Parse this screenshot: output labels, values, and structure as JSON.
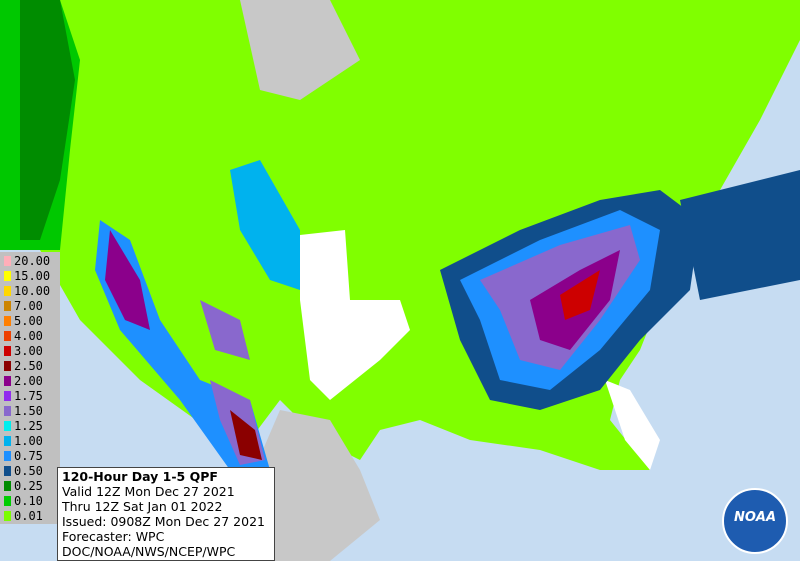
{
  "legend": [
    {
      "label": "20.00",
      "color": "#ffaeb9"
    },
    {
      "label": "15.00",
      "color": "#ffff00"
    },
    {
      "label": "10.00",
      "color": "#ffd700"
    },
    {
      "label": "7.00",
      "color": "#cd8500"
    },
    {
      "label": "5.00",
      "color": "#ff7f00"
    },
    {
      "label": "4.00",
      "color": "#ee4000"
    },
    {
      "label": "3.00",
      "color": "#cd0000"
    },
    {
      "label": "2.50",
      "color": "#8b0000"
    },
    {
      "label": "2.00",
      "color": "#8b008b"
    },
    {
      "label": "1.75",
      "color": "#912cee"
    },
    {
      "label": "1.50",
      "color": "#8968cd"
    },
    {
      "label": "1.25",
      "color": "#00eeee"
    },
    {
      "label": "1.00",
      "color": "#00b2ee"
    },
    {
      "label": "0.75",
      "color": "#1e90ff"
    },
    {
      "label": "0.50",
      "color": "#104e8b"
    },
    {
      "label": "0.25",
      "color": "#008b00"
    },
    {
      "label": "0.10",
      "color": "#00cd00"
    },
    {
      "label": "0.01",
      "color": "#7cfc00"
    }
  ],
  "info": {
    "title": "120-Hour Day 1-5 QPF",
    "lines": [
      "Valid 12Z Mon Dec 27 2021",
      "Thru 12Z Sat Jan 01 2022",
      "Issued: 0908Z Mon Dec 27 2021",
      "Forecaster: WPC",
      "DOC/NOAA/NWS/NCEP/WPC"
    ]
  },
  "logo": "NOAA"
}
